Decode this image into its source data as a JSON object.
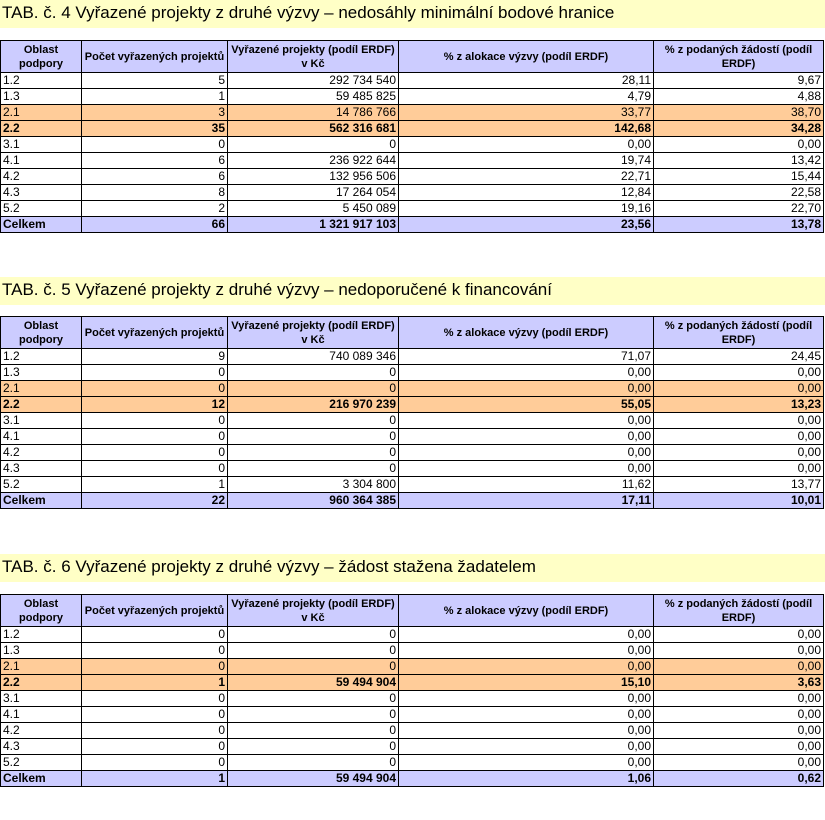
{
  "headers": [
    "Oblast podpory",
    "Počet vyřazených projektů",
    "Vyřazené projekty (podíl ERDF) v Kč",
    "% z alokace výzvy (podíl ERDF)",
    "% z podaných žádostí (podíl ERDF)"
  ],
  "tables": [
    {
      "title": "TAB. č. 4 Vyřazené projekty z druhé výzvy – nedosáhly minimální bodové hranice",
      "rows": [
        [
          "1.2",
          "5",
          "292 734 540",
          "28,11",
          "9,67"
        ],
        [
          "1.3",
          "1",
          "59 485 825",
          "4,79",
          "4,88"
        ],
        [
          "2.1",
          "3",
          "14 786 766",
          "33,77",
          "38,70"
        ],
        [
          "2.2",
          "35",
          "562 316 681",
          "142,68",
          "34,28"
        ],
        [
          "3.1",
          "0",
          "0",
          "0,00",
          "0,00"
        ],
        [
          "4.1",
          "6",
          "236 922 644",
          "19,74",
          "13,42"
        ],
        [
          "4.2",
          "6",
          "132 956 506",
          "22,71",
          "15,44"
        ],
        [
          "4.3",
          "8",
          "17 264 054",
          "12,84",
          "22,58"
        ],
        [
          "5.2",
          "2",
          "5 450 089",
          "19,16",
          "22,70"
        ]
      ],
      "total": [
        "Celkem",
        "66",
        "1 321 917 103",
        "23,56",
        "13,78"
      ]
    },
    {
      "title": "TAB. č. 5 Vyřazené projekty z druhé výzvy – nedoporučené k financování",
      "rows": [
        [
          "1.2",
          "9",
          "740 089 346",
          "71,07",
          "24,45"
        ],
        [
          "1.3",
          "0",
          "0",
          "0,00",
          "0,00"
        ],
        [
          "2.1",
          "0",
          "0",
          "0,00",
          "0,00"
        ],
        [
          "2.2",
          "12",
          "216 970 239",
          "55,05",
          "13,23"
        ],
        [
          "3.1",
          "0",
          "0",
          "0,00",
          "0,00"
        ],
        [
          "4.1",
          "0",
          "0",
          "0,00",
          "0,00"
        ],
        [
          "4.2",
          "0",
          "0",
          "0,00",
          "0,00"
        ],
        [
          "4.3",
          "0",
          "0",
          "0,00",
          "0,00"
        ],
        [
          "5.2",
          "1",
          "3 304 800",
          "11,62",
          "13,77"
        ]
      ],
      "total": [
        "Celkem",
        "22",
        "960 364 385",
        "17,11",
        "10,01"
      ]
    },
    {
      "title": "TAB. č. 6 Vyřazené projekty z druhé výzvy – žádost stažena žadatelem",
      "rows": [
        [
          "1.2",
          "0",
          "0",
          "0,00",
          "0,00"
        ],
        [
          "1.3",
          "0",
          "0",
          "0,00",
          "0,00"
        ],
        [
          "2.1",
          "0",
          "0",
          "0,00",
          "0,00"
        ],
        [
          "2.2",
          "1",
          "59 494 904",
          "15,10",
          "3,63"
        ],
        [
          "3.1",
          "0",
          "0",
          "0,00",
          "0,00"
        ],
        [
          "4.1",
          "0",
          "0",
          "0,00",
          "0,00"
        ],
        [
          "4.2",
          "0",
          "0",
          "0,00",
          "0,00"
        ],
        [
          "4.3",
          "0",
          "0",
          "0,00",
          "0,00"
        ],
        [
          "5.2",
          "0",
          "0",
          "0,00",
          "0,00"
        ]
      ],
      "total": [
        "Celkem",
        "1",
        "59 494 904",
        "1,06",
        "0,62"
      ]
    }
  ],
  "colors": {
    "title_bg": "#ffffc6",
    "header_bg": "#ccccff",
    "highlight_bg": "#ffcc99",
    "total_bg": "#ccccff"
  }
}
